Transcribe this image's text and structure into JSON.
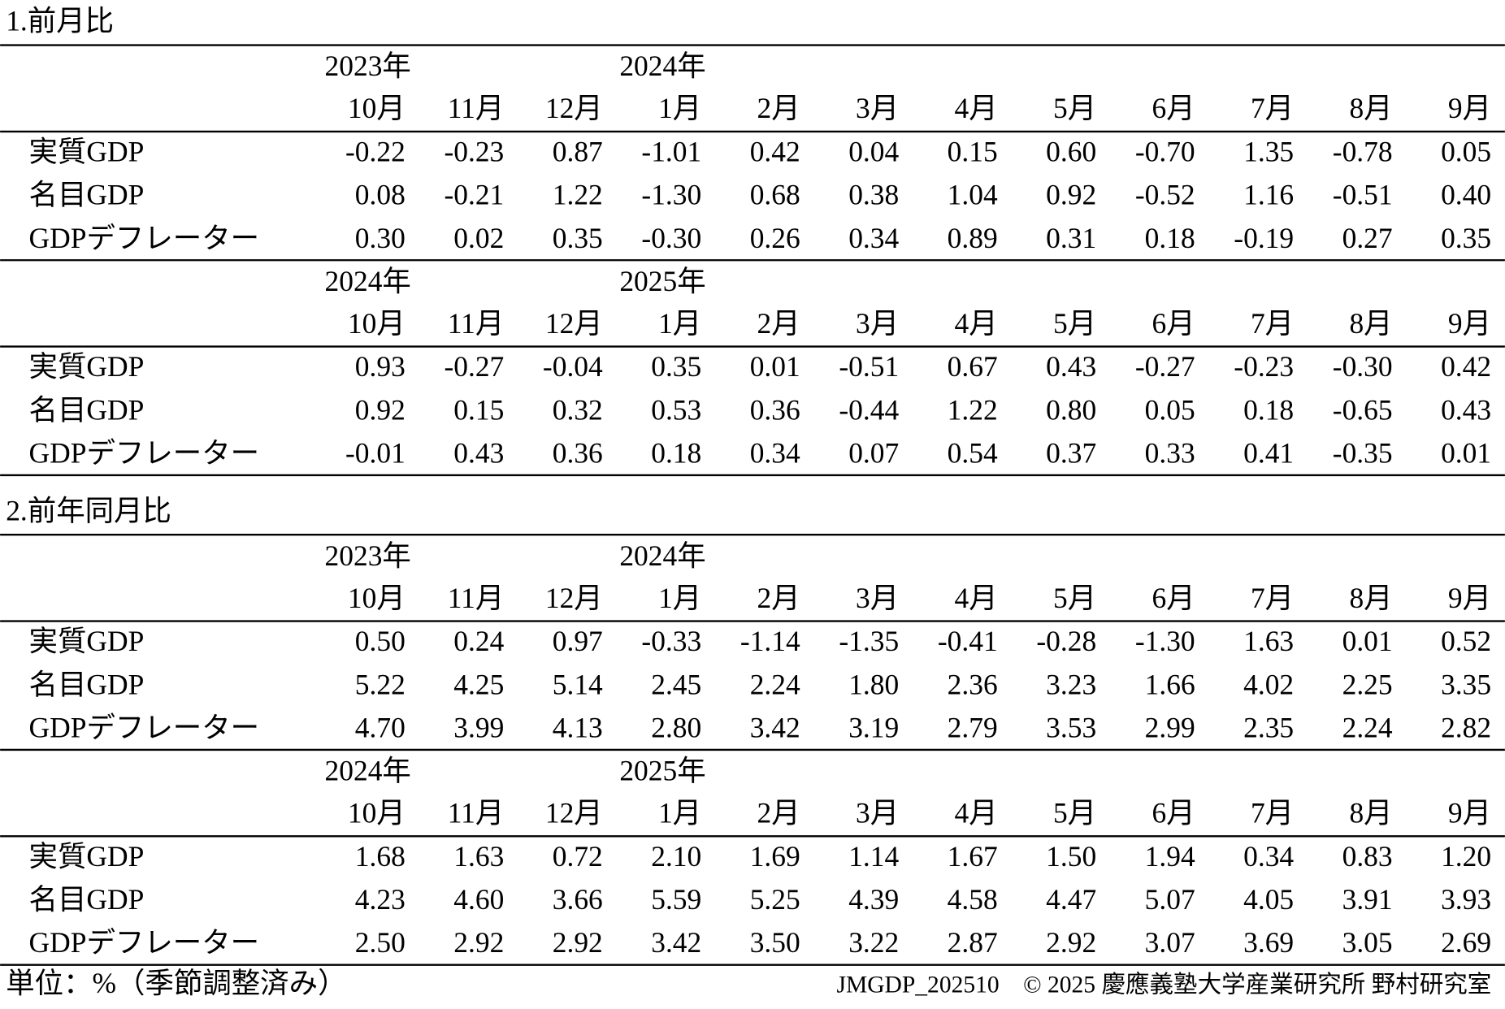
{
  "sections": [
    {
      "title": "1.前月比",
      "blocks": [
        {
          "years": [
            "2023年",
            "2024年"
          ],
          "months": [
            "10月",
            "11月",
            "12月",
            "1月",
            "2月",
            "3月",
            "4月",
            "5月",
            "6月",
            "7月",
            "8月",
            "9月"
          ],
          "rows": [
            {
              "label": "実質GDP",
              "values": [
                "-0.22",
                "-0.23",
                "0.87",
                "-1.01",
                "0.42",
                "0.04",
                "0.15",
                "0.60",
                "-0.70",
                "1.35",
                "-0.78",
                "0.05"
              ]
            },
            {
              "label": "名目GDP",
              "values": [
                "0.08",
                "-0.21",
                "1.22",
                "-1.30",
                "0.68",
                "0.38",
                "1.04",
                "0.92",
                "-0.52",
                "1.16",
                "-0.51",
                "0.40"
              ]
            },
            {
              "label": "GDPデフレーター",
              "values": [
                "0.30",
                "0.02",
                "0.35",
                "-0.30",
                "0.26",
                "0.34",
                "0.89",
                "0.31",
                "0.18",
                "-0.19",
                "0.27",
                "0.35"
              ]
            }
          ]
        },
        {
          "years": [
            "2024年",
            "2025年"
          ],
          "months": [
            "10月",
            "11月",
            "12月",
            "1月",
            "2月",
            "3月",
            "4月",
            "5月",
            "6月",
            "7月",
            "8月",
            "9月"
          ],
          "rows": [
            {
              "label": "実質GDP",
              "values": [
                "0.93",
                "-0.27",
                "-0.04",
                "0.35",
                "0.01",
                "-0.51",
                "0.67",
                "0.43",
                "-0.27",
                "-0.23",
                "-0.30",
                "0.42"
              ]
            },
            {
              "label": "名目GDP",
              "values": [
                "0.92",
                "0.15",
                "0.32",
                "0.53",
                "0.36",
                "-0.44",
                "1.22",
                "0.80",
                "0.05",
                "0.18",
                "-0.65",
                "0.43"
              ]
            },
            {
              "label": "GDPデフレーター",
              "values": [
                "-0.01",
                "0.43",
                "0.36",
                "0.18",
                "0.34",
                "0.07",
                "0.54",
                "0.37",
                "0.33",
                "0.41",
                "-0.35",
                "0.01"
              ]
            }
          ]
        }
      ]
    },
    {
      "title": "2.前年同月比",
      "blocks": [
        {
          "years": [
            "2023年",
            "2024年"
          ],
          "months": [
            "10月",
            "11月",
            "12月",
            "1月",
            "2月",
            "3月",
            "4月",
            "5月",
            "6月",
            "7月",
            "8月",
            "9月"
          ],
          "rows": [
            {
              "label": "実質GDP",
              "values": [
                "0.50",
                "0.24",
                "0.97",
                "-0.33",
                "-1.14",
                "-1.35",
                "-0.41",
                "-0.28",
                "-1.30",
                "1.63",
                "0.01",
                "0.52"
              ]
            },
            {
              "label": "名目GDP",
              "values": [
                "5.22",
                "4.25",
                "5.14",
                "2.45",
                "2.24",
                "1.80",
                "2.36",
                "3.23",
                "1.66",
                "4.02",
                "2.25",
                "3.35"
              ]
            },
            {
              "label": "GDPデフレーター",
              "values": [
                "4.70",
                "3.99",
                "4.13",
                "2.80",
                "3.42",
                "3.19",
                "2.79",
                "3.53",
                "2.99",
                "2.35",
                "2.24",
                "2.82"
              ]
            }
          ]
        },
        {
          "years": [
            "2024年",
            "2025年"
          ],
          "months": [
            "10月",
            "11月",
            "12月",
            "1月",
            "2月",
            "3月",
            "4月",
            "5月",
            "6月",
            "7月",
            "8月",
            "9月"
          ],
          "rows": [
            {
              "label": "実質GDP",
              "values": [
                "1.68",
                "1.63",
                "0.72",
                "2.10",
                "1.69",
                "1.14",
                "1.67",
                "1.50",
                "1.94",
                "0.34",
                "0.83",
                "1.20"
              ]
            },
            {
              "label": "名目GDP",
              "values": [
                "4.23",
                "4.60",
                "3.66",
                "5.59",
                "5.25",
                "4.39",
                "4.58",
                "4.47",
                "5.07",
                "4.05",
                "3.91",
                "3.93"
              ]
            },
            {
              "label": "GDPデフレーター",
              "values": [
                "2.50",
                "2.92",
                "2.92",
                "3.42",
                "3.50",
                "3.22",
                "2.87",
                "2.92",
                "3.07",
                "3.69",
                "3.05",
                "2.69"
              ]
            }
          ]
        }
      ]
    }
  ],
  "footer": {
    "unit": "単位：%（季節調整済み）",
    "source": "JMGDP_202510　© 2025 慶應義塾大学産業研究所 野村研究室"
  }
}
